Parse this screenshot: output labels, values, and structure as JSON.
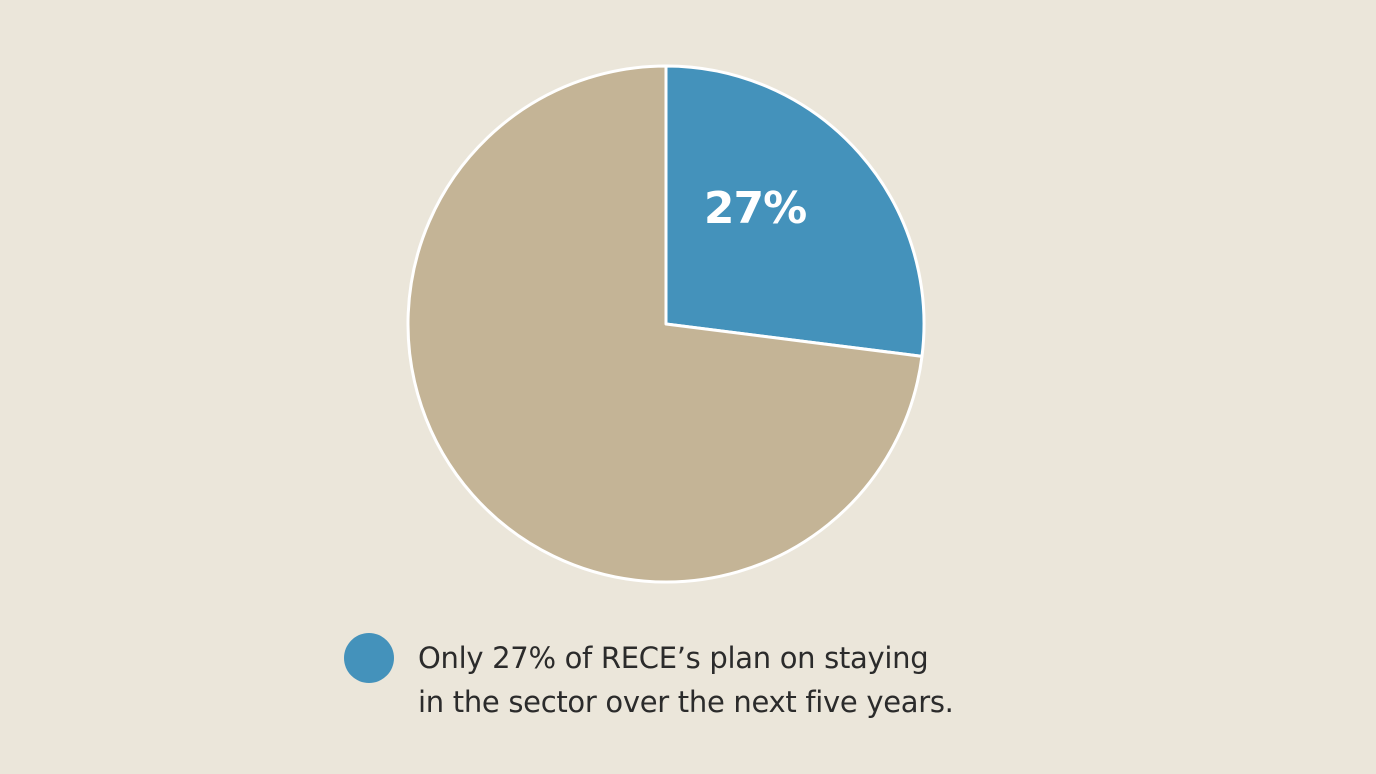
{
  "chart_data": {
    "type": "pie",
    "slices": [
      {
        "label": "27%",
        "value": 27,
        "color": "#4492bb",
        "show_label": true
      },
      {
        "label": "",
        "value": 73,
        "color": "#c4b496",
        "show_label": false
      }
    ],
    "start_angle_deg": 0,
    "direction": "clockwise",
    "stroke_color": "#ffffff"
  },
  "legend": {
    "placement": "bottom-center",
    "swatch_color": "#4492bb",
    "text": "Only 27% of RECE’s plan on staying\nin the sector over the next five years."
  }
}
